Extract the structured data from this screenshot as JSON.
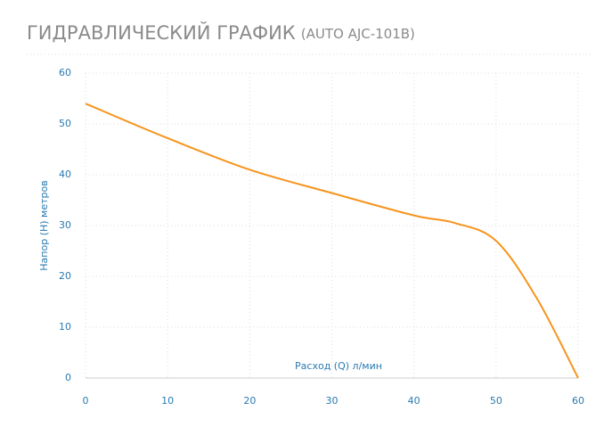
{
  "chart_data": {
    "type": "line",
    "title": "ГИДРАВЛИЧЕСКИЙ ГРАФИК",
    "subtitle": "(AUTO AJC-101B)",
    "x_label": "Расход (Q) л/мин",
    "y_label": "Напор (H) метров",
    "x": [
      0,
      10,
      20,
      30,
      40,
      45,
      50,
      55,
      60
    ],
    "series": [
      {
        "color": "#f7941d",
        "values": [
          54,
          47.2,
          41,
          36.4,
          32,
          30.5,
          27,
          15.6,
          0
        ]
      }
    ],
    "xlim": [
      0,
      60
    ],
    "ylim": [
      0,
      60
    ],
    "xticks": [
      0,
      10,
      20,
      30,
      40,
      50,
      60
    ],
    "yticks": [
      0,
      10,
      20,
      30,
      40,
      50,
      60
    ],
    "grid": true
  }
}
